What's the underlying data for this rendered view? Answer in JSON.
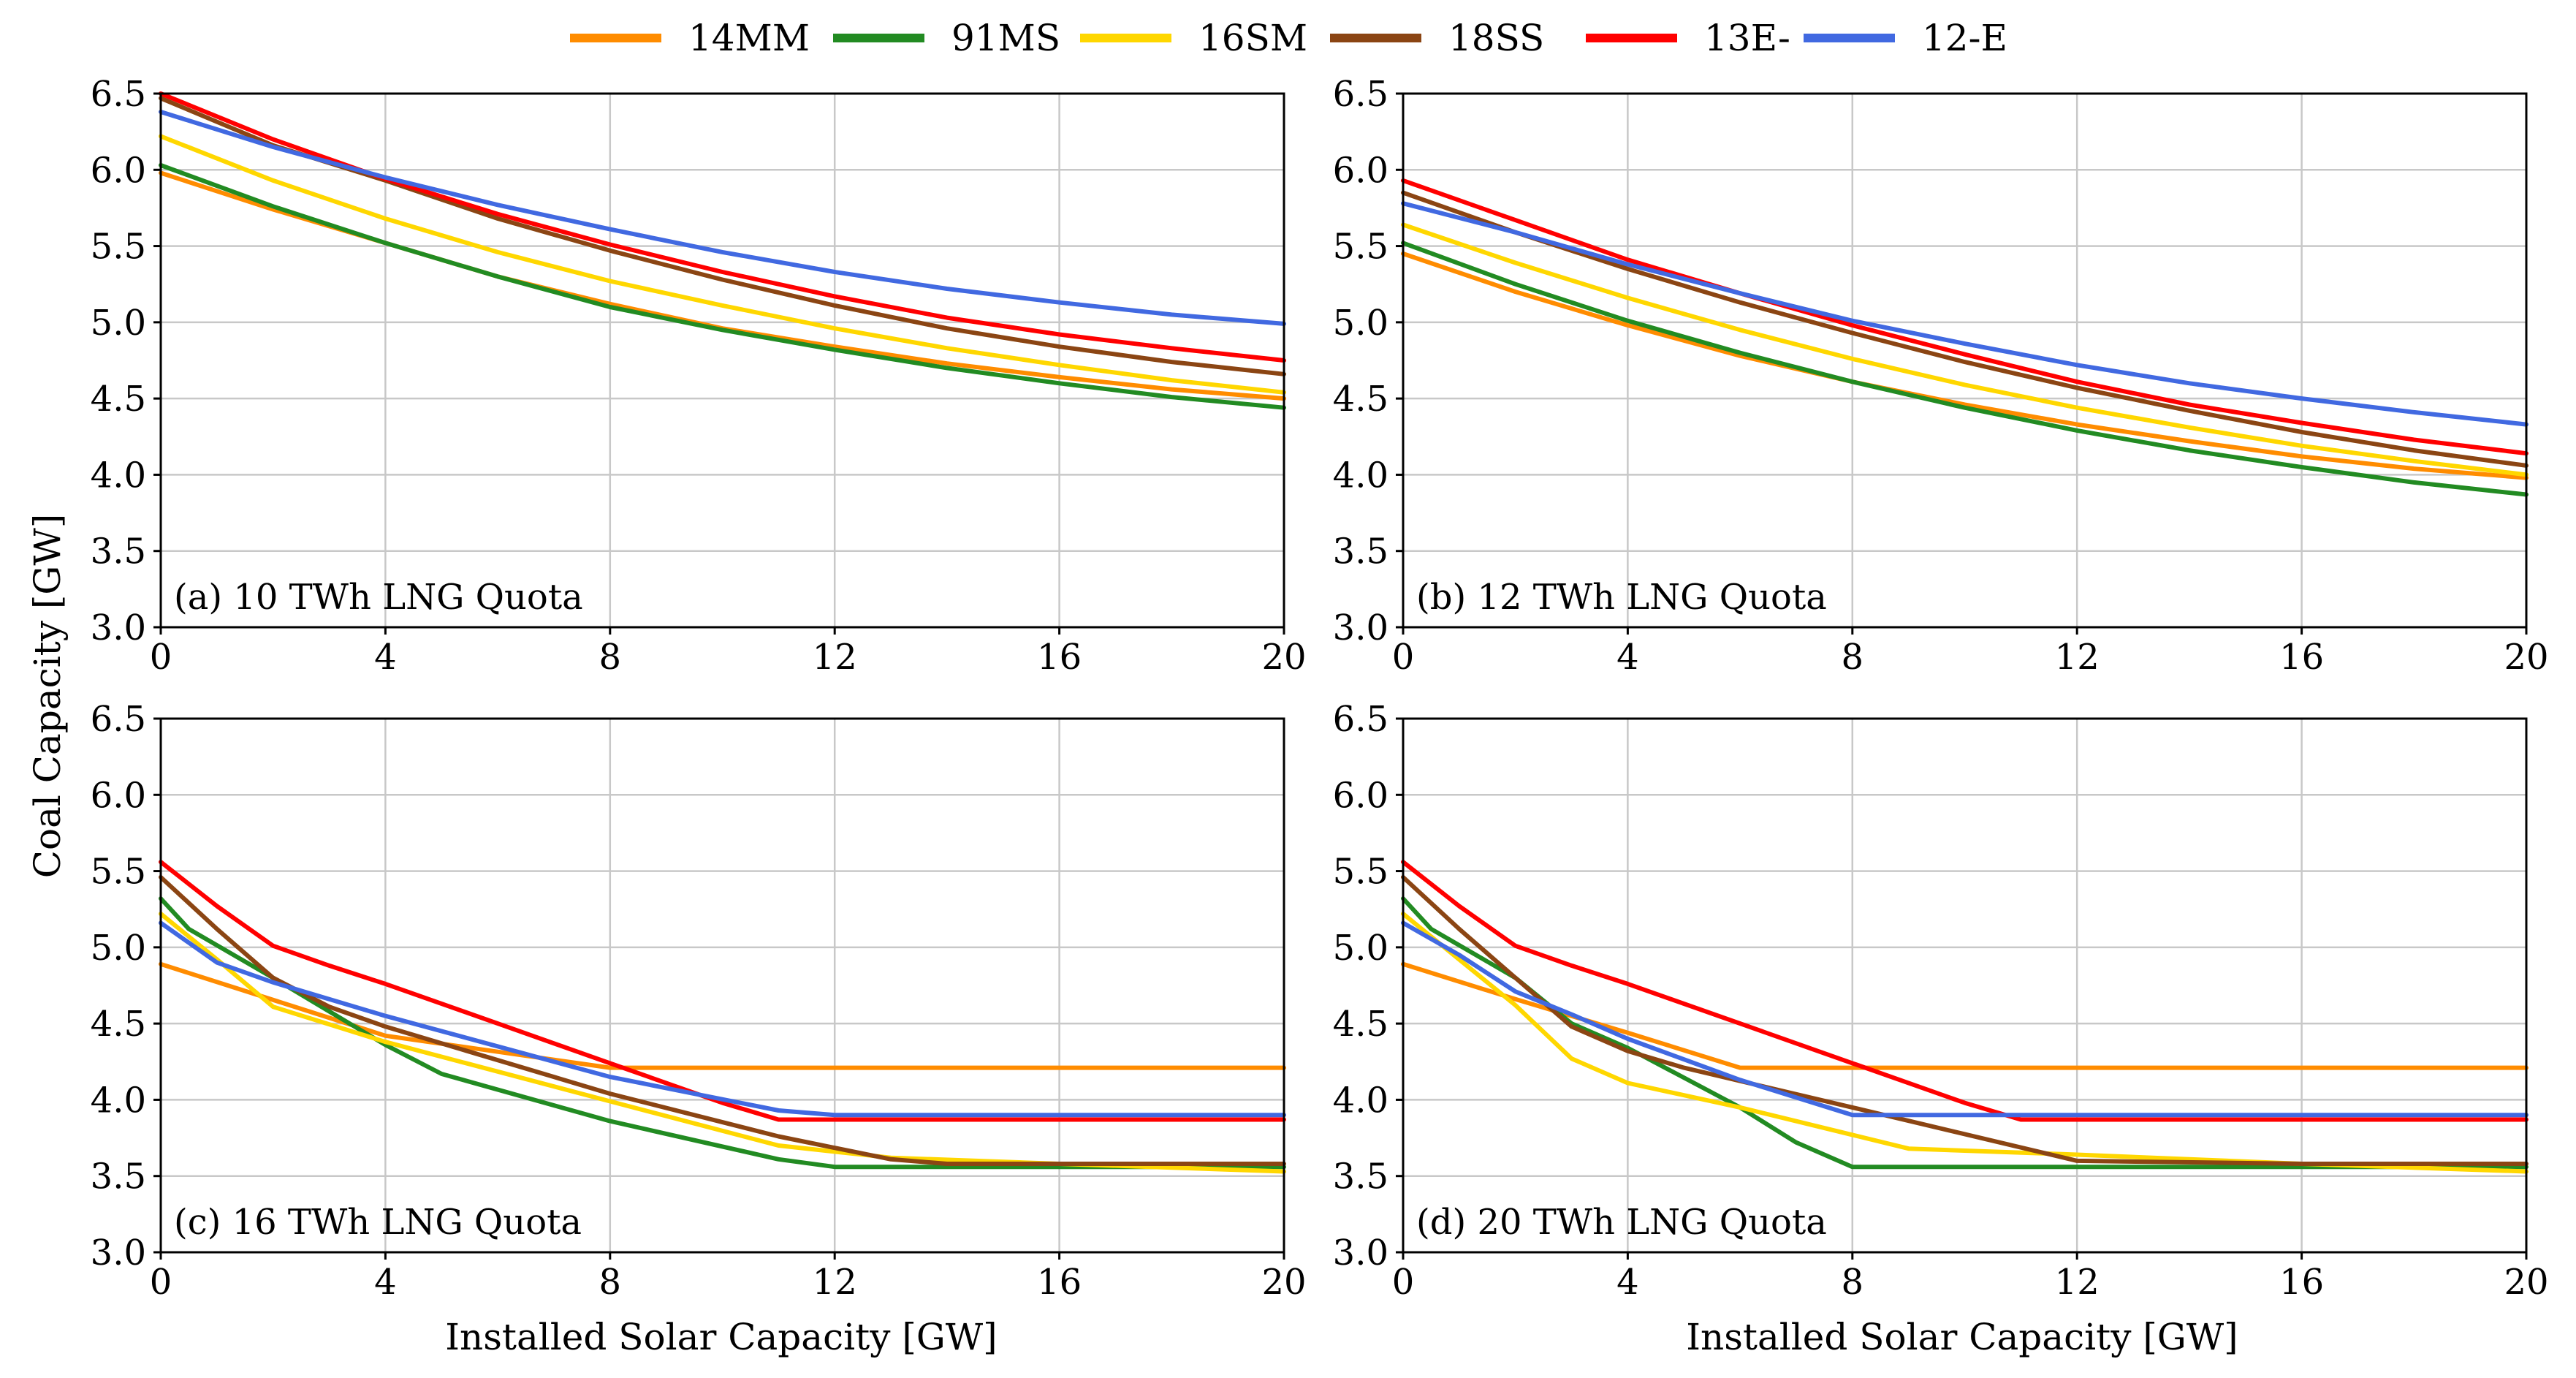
{
  "chart_data": {
    "type": "line",
    "ylabel": "Coal Capacity [GW]",
    "xlabel": "Installed Solar Capacity [GW]",
    "xlim": [
      0,
      20
    ],
    "ylim": [
      3.0,
      6.5
    ],
    "xticks": [
      "0",
      "4",
      "8",
      "12",
      "16",
      "20"
    ],
    "yticks": [
      "3.0",
      "3.5",
      "4.0",
      "4.5",
      "5.0",
      "5.5",
      "6.0",
      "6.5"
    ],
    "grid": true,
    "legend": {
      "placement": "top-center",
      "entries": [
        {
          "name": "14MM",
          "color": "#ff8c00"
        },
        {
          "name": "91MS",
          "color": "#228b22"
        },
        {
          "name": "16SM",
          "color": "#ffd700"
        },
        {
          "name": "18SS",
          "color": "#8b4513"
        },
        {
          "name": "13E-",
          "color": "#ff0000"
        },
        {
          "name": "12-E",
          "color": "#4169e1"
        }
      ]
    },
    "panels": [
      {
        "label": "(a) 10 TWh LNG Quota",
        "series": [
          {
            "name": "14MM",
            "x": [
              0,
              2,
              4,
              6,
              8,
              10,
              12,
              14,
              16,
              18,
              20
            ],
            "y": [
              5.98,
              5.74,
              5.52,
              5.3,
              5.12,
              4.96,
              4.84,
              4.73,
              4.64,
              4.56,
              4.5
            ]
          },
          {
            "name": "91MS",
            "x": [
              0,
              2,
              4,
              6,
              8,
              10,
              12,
              14,
              16,
              18,
              20
            ],
            "y": [
              6.03,
              5.76,
              5.52,
              5.3,
              5.1,
              4.95,
              4.82,
              4.7,
              4.6,
              4.51,
              4.44
            ]
          },
          {
            "name": "16SM",
            "x": [
              0,
              2,
              4,
              6,
              8,
              10,
              12,
              14,
              16,
              18,
              20
            ],
            "y": [
              6.22,
              5.93,
              5.68,
              5.46,
              5.27,
              5.11,
              4.96,
              4.83,
              4.72,
              4.62,
              4.54
            ]
          },
          {
            "name": "18SS",
            "x": [
              0,
              2,
              4,
              6,
              8,
              10,
              12,
              14,
              16,
              18,
              20
            ],
            "y": [
              6.47,
              6.16,
              5.93,
              5.68,
              5.47,
              5.28,
              5.11,
              4.96,
              4.84,
              4.74,
              4.66
            ]
          },
          {
            "name": "13E-",
            "x": [
              0,
              2,
              4,
              6,
              8,
              10,
              12,
              14,
              16,
              18,
              20
            ],
            "y": [
              6.5,
              6.2,
              5.94,
              5.71,
              5.51,
              5.33,
              5.17,
              5.03,
              4.92,
              4.83,
              4.75
            ]
          },
          {
            "name": "12-E",
            "x": [
              0,
              2,
              4,
              6,
              8,
              10,
              12,
              14,
              16,
              18,
              20
            ],
            "y": [
              6.38,
              6.15,
              5.95,
              5.77,
              5.61,
              5.46,
              5.33,
              5.22,
              5.13,
              5.05,
              4.99
            ]
          }
        ]
      },
      {
        "label": "(b) 12 TWh LNG Quota",
        "series": [
          {
            "name": "14MM",
            "x": [
              0,
              2,
              4,
              6,
              8,
              10,
              12,
              14,
              16,
              18,
              20
            ],
            "y": [
              5.45,
              5.2,
              4.98,
              4.78,
              4.61,
              4.46,
              4.33,
              4.22,
              4.12,
              4.04,
              3.98
            ]
          },
          {
            "name": "91MS",
            "x": [
              0,
              2,
              4,
              6,
              8,
              10,
              12,
              14,
              16,
              18,
              20
            ],
            "y": [
              5.52,
              5.25,
              5.01,
              4.8,
              4.61,
              4.44,
              4.29,
              4.16,
              4.05,
              3.95,
              3.87
            ]
          },
          {
            "name": "16SM",
            "x": [
              0,
              2,
              4,
              6,
              8,
              10,
              12,
              14,
              16,
              18,
              20
            ],
            "y": [
              5.64,
              5.39,
              5.16,
              4.95,
              4.76,
              4.59,
              4.44,
              4.31,
              4.19,
              4.09,
              4.0
            ]
          },
          {
            "name": "18SS",
            "x": [
              0,
              2,
              4,
              6,
              8,
              10,
              12,
              14,
              16,
              18,
              20
            ],
            "y": [
              5.85,
              5.59,
              5.35,
              5.13,
              4.93,
              4.74,
              4.57,
              4.42,
              4.28,
              4.16,
              4.06
            ]
          },
          {
            "name": "13E-",
            "x": [
              0,
              2,
              4,
              6,
              8,
              10,
              12,
              14,
              16,
              18,
              20
            ],
            "y": [
              5.93,
              5.67,
              5.41,
              5.19,
              4.98,
              4.79,
              4.61,
              4.46,
              4.34,
              4.23,
              4.14
            ]
          },
          {
            "name": "12-E",
            "x": [
              0,
              2,
              4,
              6,
              8,
              10,
              12,
              14,
              16,
              18,
              20
            ],
            "y": [
              5.78,
              5.59,
              5.38,
              5.19,
              5.01,
              4.86,
              4.72,
              4.6,
              4.5,
              4.41,
              4.33
            ]
          }
        ]
      },
      {
        "label": "(c) 16 TWh LNG Quota",
        "series": [
          {
            "name": "14MM",
            "x": [
              0,
              4,
              8,
              10,
              12,
              16,
              20
            ],
            "y": [
              4.89,
              4.42,
              4.21,
              4.21,
              4.21,
              4.21,
              4.21
            ]
          },
          {
            "name": "91MS",
            "x": [
              0,
              0.5,
              2,
              3,
              4,
              5,
              8,
              11,
              12,
              16,
              20
            ],
            "y": [
              5.32,
              5.12,
              4.8,
              4.58,
              4.36,
              4.17,
              3.86,
              3.61,
              3.56,
              3.56,
              3.56
            ]
          },
          {
            "name": "16SM",
            "x": [
              0,
              1,
              2,
              4,
              8,
              11,
              13,
              16,
              20
            ],
            "y": [
              5.22,
              4.92,
              4.61,
              4.38,
              3.99,
              3.7,
              3.62,
              3.58,
              3.53
            ]
          },
          {
            "name": "18SS",
            "x": [
              0,
              1,
              2,
              3,
              4,
              8,
              11,
              13,
              14,
              16,
              20
            ],
            "y": [
              5.46,
              5.12,
              4.8,
              4.61,
              4.48,
              4.04,
              3.76,
              3.61,
              3.58,
              3.58,
              3.58
            ]
          },
          {
            "name": "13E-",
            "x": [
              0,
              1,
              2,
              3,
              4,
              6,
              8,
              10,
              11,
              12,
              16,
              20
            ],
            "y": [
              5.56,
              5.27,
              5.01,
              4.88,
              4.76,
              4.5,
              4.24,
              3.98,
              3.87,
              3.87,
              3.87,
              3.87
            ]
          },
          {
            "name": "12-E",
            "x": [
              0,
              1,
              2,
              4,
              8,
              11,
              12,
              16,
              20
            ],
            "y": [
              5.16,
              4.9,
              4.77,
              4.55,
              4.15,
              3.93,
              3.9,
              3.9,
              3.9
            ]
          }
        ]
      },
      {
        "label": "(d) 20 TWh LNG Quota",
        "series": [
          {
            "name": "14MM",
            "x": [
              0,
              2,
              4,
              6,
              8,
              12,
              16,
              20
            ],
            "y": [
              4.89,
              4.66,
              4.44,
              4.21,
              4.21,
              4.21,
              4.21,
              4.21
            ]
          },
          {
            "name": "91MS",
            "x": [
              0,
              0.5,
              2,
              3,
              4,
              6,
              7,
              8,
              12,
              16,
              20
            ],
            "y": [
              5.32,
              5.12,
              4.8,
              4.5,
              4.34,
              3.95,
              3.72,
              3.56,
              3.56,
              3.56,
              3.56
            ]
          },
          {
            "name": "16SM",
            "x": [
              0,
              1,
              2,
              3,
              4,
              6,
              8,
              9,
              12,
              16,
              20
            ],
            "y": [
              5.22,
              4.92,
              4.62,
              4.27,
              4.11,
              3.95,
              3.77,
              3.68,
              3.64,
              3.58,
              3.53
            ]
          },
          {
            "name": "18SS",
            "x": [
              0,
              1,
              2,
              3,
              4,
              5,
              8,
              12,
              16,
              20
            ],
            "y": [
              5.46,
              5.12,
              4.8,
              4.48,
              4.32,
              4.21,
              3.95,
              3.6,
              3.58,
              3.58
            ]
          },
          {
            "name": "13E-",
            "x": [
              0,
              1,
              2,
              3,
              4,
              6,
              8,
              10,
              11,
              12,
              16,
              20
            ],
            "y": [
              5.56,
              5.27,
              5.01,
              4.88,
              4.76,
              4.5,
              4.24,
              3.98,
              3.87,
              3.87,
              3.87,
              3.87
            ]
          },
          {
            "name": "12-E",
            "x": [
              0,
              1,
              2,
              3,
              4,
              6,
              8,
              11,
              16,
              20
            ],
            "y": [
              5.16,
              4.95,
              4.71,
              4.56,
              4.4,
              4.13,
              3.9,
              3.9,
              3.9,
              3.9
            ]
          }
        ]
      }
    ]
  }
}
